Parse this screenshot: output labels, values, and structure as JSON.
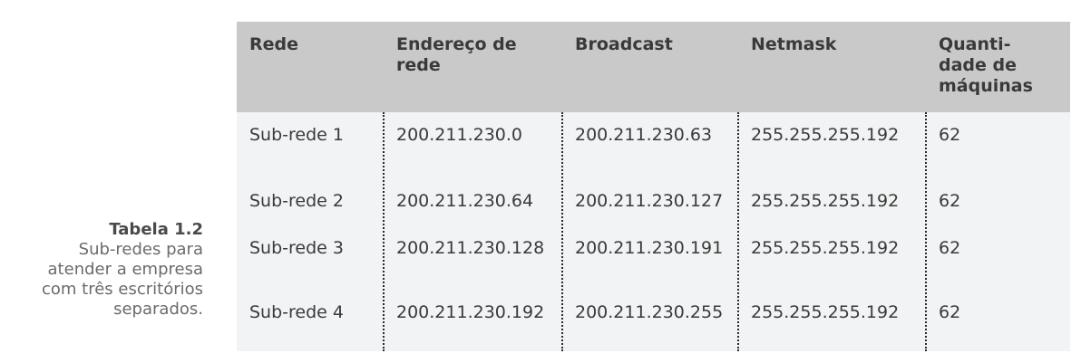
{
  "caption": {
    "title": "Tabela 1.2",
    "lines": [
      "Sub-redes para",
      "atender a empresa",
      "com três escritórios",
      "separados."
    ]
  },
  "table": {
    "headers": {
      "rede": "Rede",
      "endereco": [
        "Endereço de",
        "rede"
      ],
      "broadcast": "Broadcast",
      "netmask": "Netmask",
      "quantidade": [
        "Quanti-",
        "dade de",
        "máquinas"
      ]
    },
    "rows": [
      {
        "rede": "Sub-rede 1",
        "endereco": "200.211.230.0",
        "broadcast": "200.211.230.63",
        "netmask": "255.255.255.192",
        "quantidade": "62"
      },
      {
        "rede": "Sub-rede 2",
        "endereco": "200.211.230.64",
        "broadcast": "200.211.230.127",
        "netmask": "255.255.255.192",
        "quantidade": "62"
      },
      {
        "rede": "Sub-rede 3",
        "endereco": "200.211.230.128",
        "broadcast": "200.211.230.191",
        "netmask": "255.255.255.192",
        "quantidade": "62"
      },
      {
        "rede": "Sub-rede 4",
        "endereco": "200.211.230.192",
        "broadcast": "200.211.230.255",
        "netmask": "255.255.255.192",
        "quantidade": "62"
      }
    ]
  }
}
